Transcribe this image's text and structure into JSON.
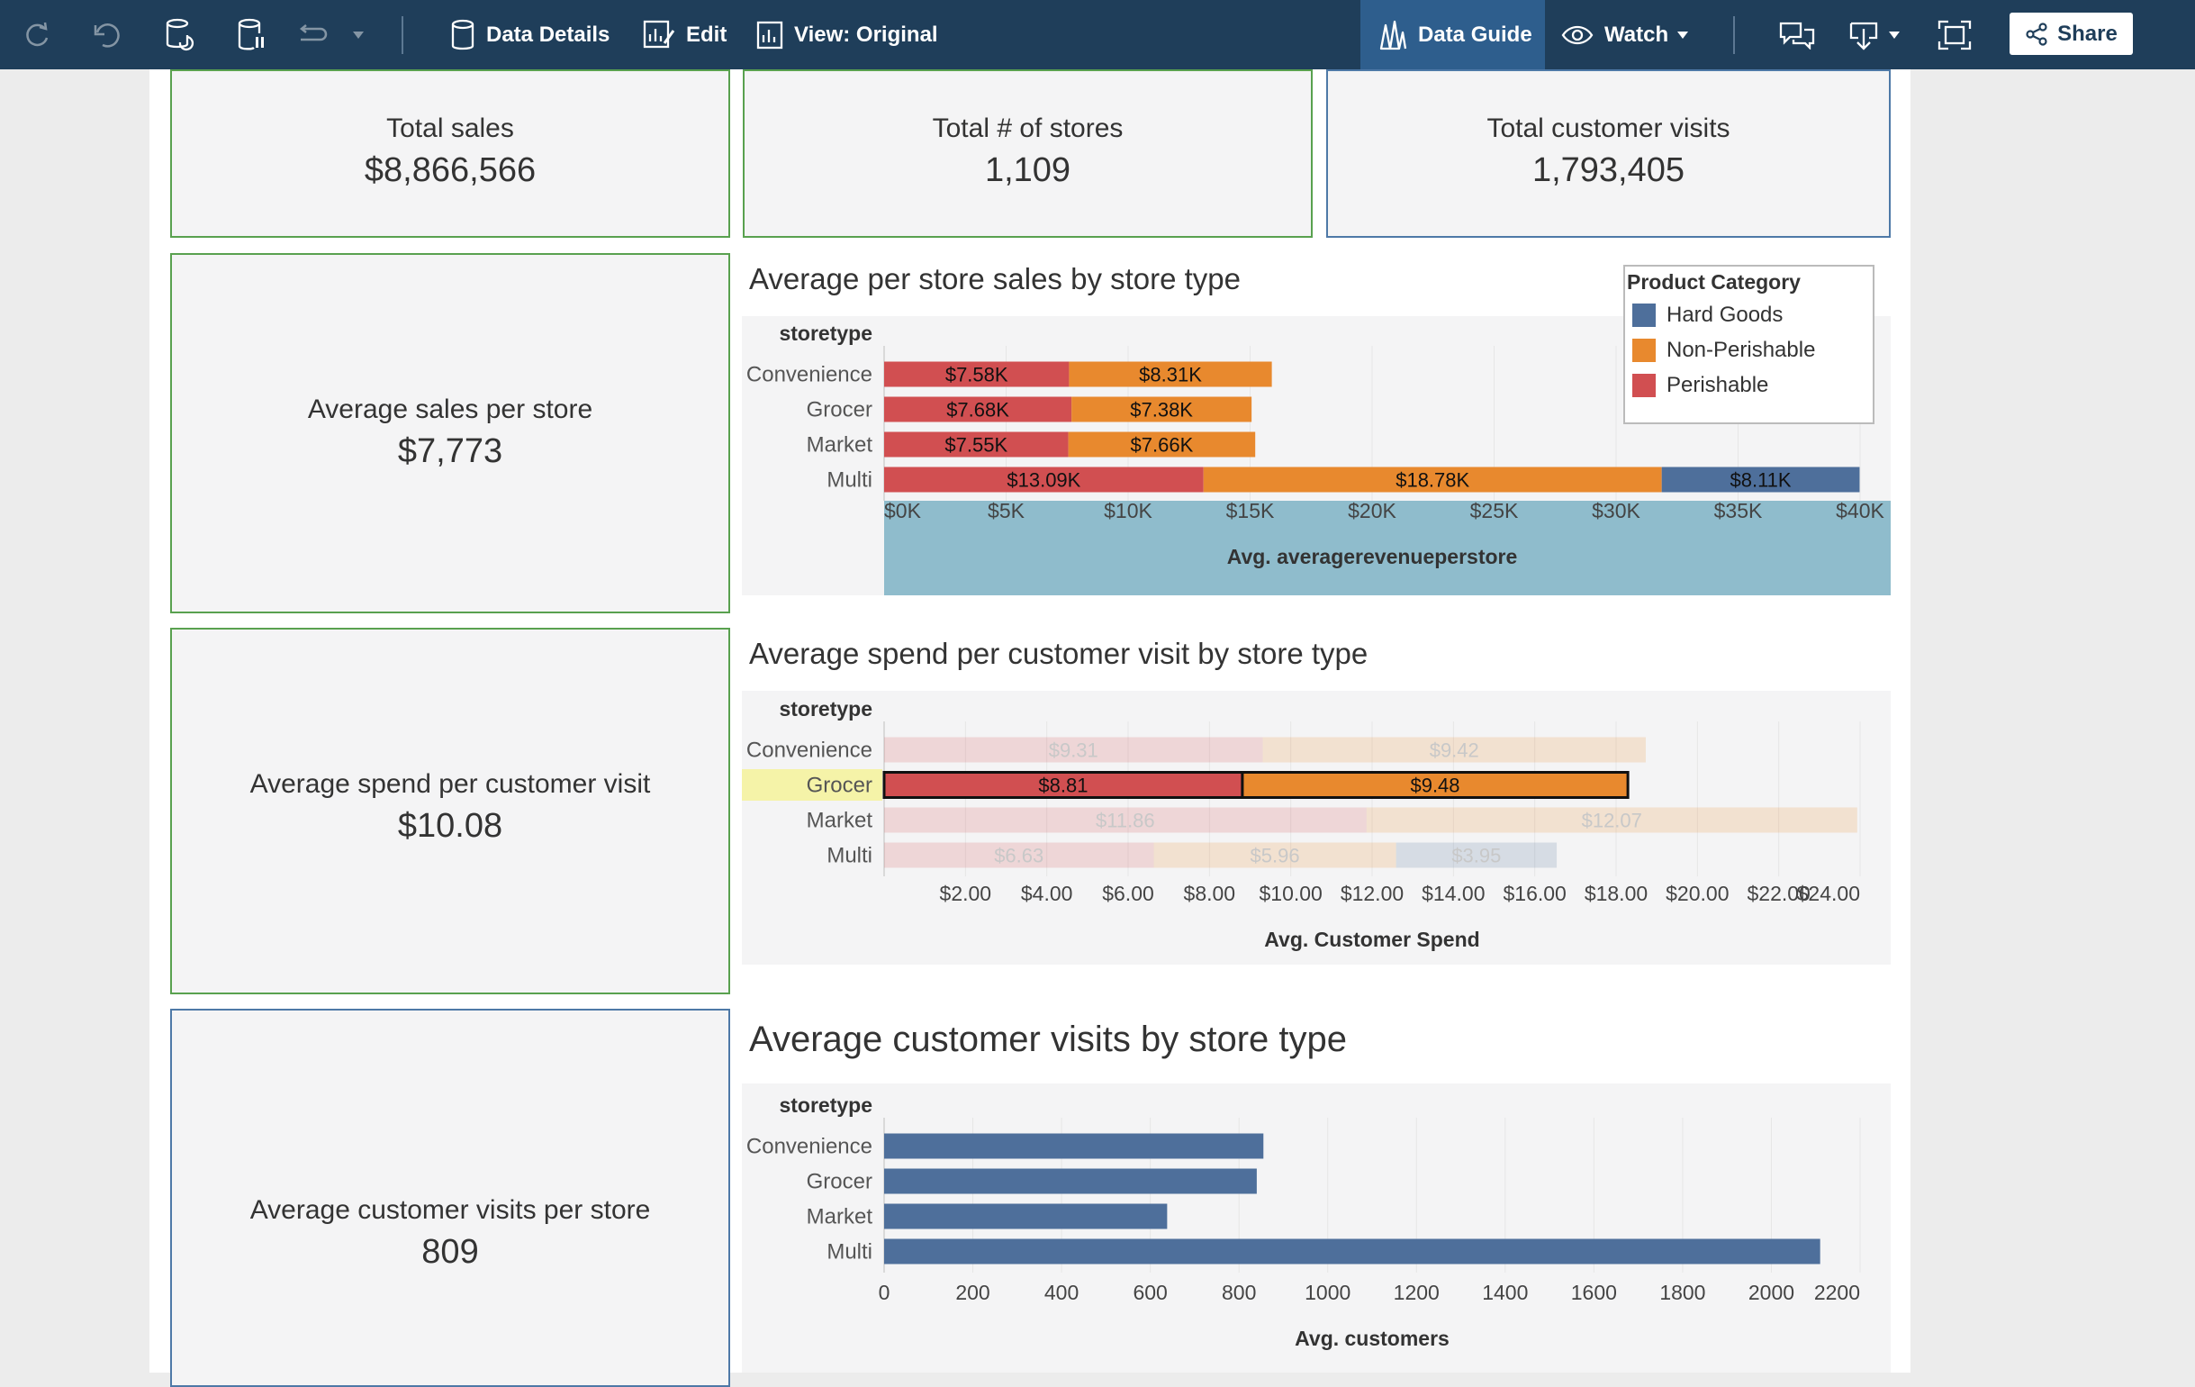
{
  "toolbar": {
    "data_details": "Data Details",
    "edit": "Edit",
    "view": "View: Original",
    "data_guide": "Data Guide",
    "watch": "Watch",
    "share": "Share"
  },
  "kpis": {
    "total_sales": {
      "label": "Total sales",
      "value": "$8,866,566"
    },
    "total_stores": {
      "label": "Total # of stores",
      "value": "1,109"
    },
    "total_visits": {
      "label": "Total customer visits",
      "value": "1,793,405"
    },
    "avg_sales": {
      "label": "Average sales per store",
      "value": "$7,773"
    },
    "avg_spend": {
      "label": "Average spend per customer visit",
      "value": "$10.08"
    },
    "avg_visits": {
      "label": "Average customer visits per store",
      "value": "809"
    }
  },
  "legend": {
    "title": "Product Category",
    "items": [
      {
        "name": "Hard Goods",
        "color": "#4e6f9b"
      },
      {
        "name": "Non-Perishable",
        "color": "#e8892e"
      },
      {
        "name": "Perishable",
        "color": "#d14f51"
      }
    ]
  },
  "chart_data": [
    {
      "type": "bar",
      "orientation": "horizontal",
      "stacked": true,
      "title": "Average per store sales by store type",
      "row_header": "storetype",
      "xlabel": "Avg. averagerevenueperstore",
      "categories": [
        "Convenience",
        "Grocer",
        "Market",
        "Multi"
      ],
      "xlim": [
        0,
        40000
      ],
      "ticks": [
        0,
        5000,
        10000,
        15000,
        20000,
        25000,
        30000,
        35000,
        40000
      ],
      "tick_labels": [
        "$0K",
        "$5K",
        "$10K",
        "$15K",
        "$20K",
        "$25K",
        "$30K",
        "$35K",
        "$40K"
      ],
      "series": [
        {
          "name": "Perishable",
          "values": [
            7580,
            7680,
            7550,
            13090
          ],
          "labels": [
            "$7.58K",
            "$7.68K",
            "$7.55K",
            "$13.09K"
          ]
        },
        {
          "name": "Non-Perishable",
          "values": [
            8310,
            7380,
            7660,
            18780
          ],
          "labels": [
            "$8.31K",
            "$7.38K",
            "$7.66K",
            "$18.78K"
          ]
        },
        {
          "name": "Hard Goods",
          "values": [
            0,
            0,
            0,
            8110
          ],
          "labels": [
            "",
            "",
            "",
            "$8.11K"
          ]
        }
      ]
    },
    {
      "type": "bar",
      "orientation": "horizontal",
      "stacked": true,
      "title": "Average spend per customer visit by store type",
      "row_header": "storetype",
      "xlabel": "Avg. Customer Spend",
      "categories": [
        "Convenience",
        "Grocer",
        "Market",
        "Multi"
      ],
      "highlight_category": "Grocer",
      "xlim": [
        0,
        24
      ],
      "ticks": [
        2,
        4,
        6,
        8,
        10,
        12,
        14,
        16,
        18,
        20,
        22,
        24
      ],
      "tick_labels": [
        "$2.00",
        "$4.00",
        "$6.00",
        "$8.00",
        "$10.00",
        "$12.00",
        "$14.00",
        "$16.00",
        "$18.00",
        "$20.00",
        "$22.00",
        "$24.00"
      ],
      "series": [
        {
          "name": "Perishable",
          "values": [
            9.31,
            8.81,
            11.86,
            6.63
          ],
          "labels": [
            "$9.31",
            "$8.81",
            "$11.86",
            "$6.63"
          ]
        },
        {
          "name": "Non-Perishable",
          "values": [
            9.42,
            9.48,
            12.07,
            5.96
          ],
          "labels": [
            "$9.42",
            "$9.48",
            "$12.07",
            "$5.96"
          ]
        },
        {
          "name": "Hard Goods",
          "values": [
            0,
            0,
            0,
            3.95
          ],
          "labels": [
            "",
            "",
            "",
            "$3.95"
          ]
        }
      ]
    },
    {
      "type": "bar",
      "orientation": "horizontal",
      "title": "Average customer visits by store type",
      "row_header": "storetype",
      "xlabel": "Avg. customers",
      "categories": [
        "Convenience",
        "Grocer",
        "Market",
        "Multi"
      ],
      "xlim": [
        0,
        2200
      ],
      "ticks": [
        0,
        200,
        400,
        600,
        800,
        1000,
        1200,
        1400,
        1600,
        1800,
        2000,
        2200
      ],
      "tick_labels": [
        "0",
        "200",
        "400",
        "600",
        "800",
        "1000",
        "1200",
        "1400",
        "1600",
        "1800",
        "2000",
        "2200"
      ],
      "series": [
        {
          "name": "Hard Goods",
          "values": [
            855,
            840,
            638,
            2110
          ]
        }
      ]
    }
  ]
}
